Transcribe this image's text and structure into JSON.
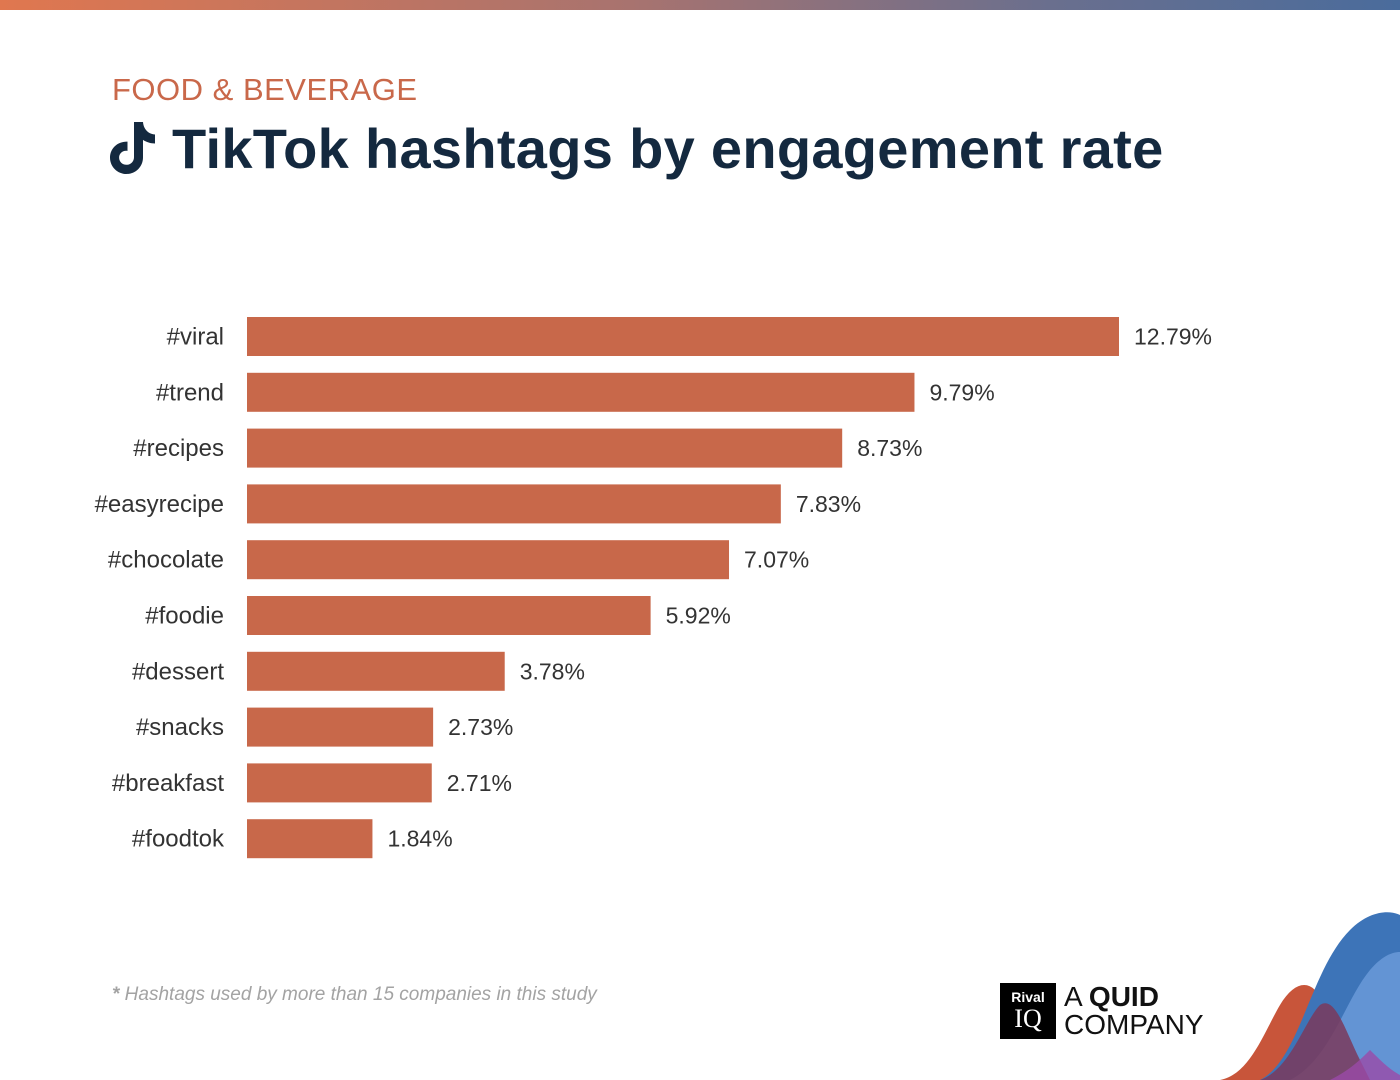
{
  "header": {
    "eyebrow": "FOOD & BEVERAGE",
    "title": "TikTok hashtags by engagement rate",
    "title_icon": "tiktok-icon"
  },
  "colors": {
    "bar": "#c8684a",
    "eyebrow": "#c9684a",
    "title": "#14293f"
  },
  "chart_data": {
    "type": "bar",
    "orientation": "horizontal",
    "title": "TikTok hashtags by engagement rate",
    "xlabel": "",
    "ylabel": "",
    "grid": false,
    "legend": "none",
    "xlim": [
      0,
      12.79
    ],
    "unit": "%",
    "categories": [
      "#viral",
      "#trend",
      "#recipes",
      "#easyrecipe",
      "#chocolate",
      "#foodie",
      "#dessert",
      "#snacks",
      "#breakfast",
      "#foodtok"
    ],
    "values": [
      12.79,
      9.79,
      8.73,
      7.83,
      7.07,
      5.92,
      3.78,
      2.73,
      2.71,
      1.84
    ],
    "value_labels": [
      "12.79%",
      "9.79%",
      "8.73%",
      "7.83%",
      "7.07%",
      "5.92%",
      "3.78%",
      "2.73%",
      "2.71%",
      "1.84%"
    ]
  },
  "footer": {
    "footnote_star": "*",
    "footnote": " Hashtags used by more than 15 companies in this study",
    "brand_rival": "Rival",
    "brand_iq": "IQ",
    "brand_a": "A",
    "brand_quid": "QUID",
    "brand_company": "COMPANY"
  }
}
